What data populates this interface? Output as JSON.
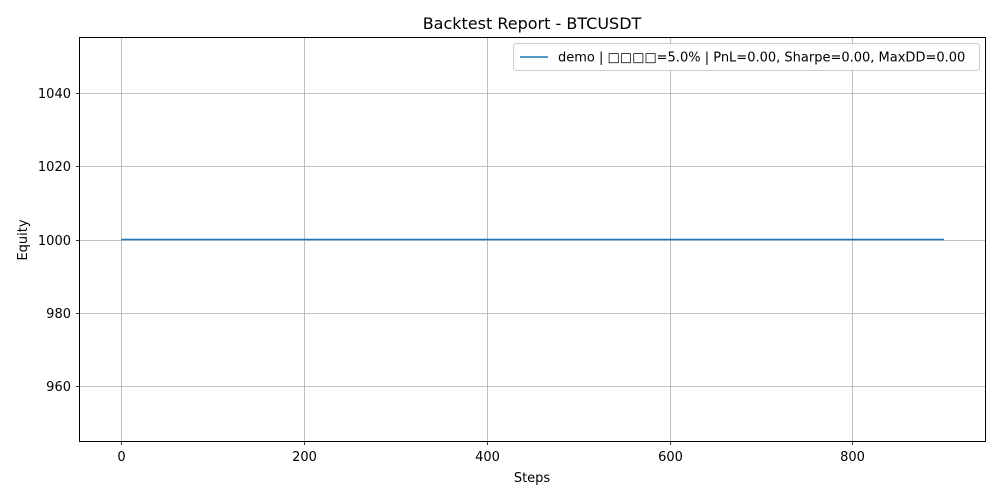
{
  "chart_data": {
    "type": "line",
    "title": "Backtest Report - BTCUSDT",
    "xlabel": "Steps",
    "ylabel": "Equity",
    "xlim": [
      -45,
      945
    ],
    "ylim": [
      945,
      1055
    ],
    "xticks": [
      0,
      200,
      400,
      600,
      800
    ],
    "yticks": [
      960,
      980,
      1000,
      1020,
      1040
    ],
    "grid": true,
    "legend_placement": "top-right",
    "series": [
      {
        "name": "demo | □□□□=5.0% | PnL=0.00, Sharpe=0.00, MaxDD=0.00",
        "color": "#1f77b4",
        "x": [
          0,
          900
        ],
        "y": [
          1000,
          1000
        ]
      }
    ]
  }
}
